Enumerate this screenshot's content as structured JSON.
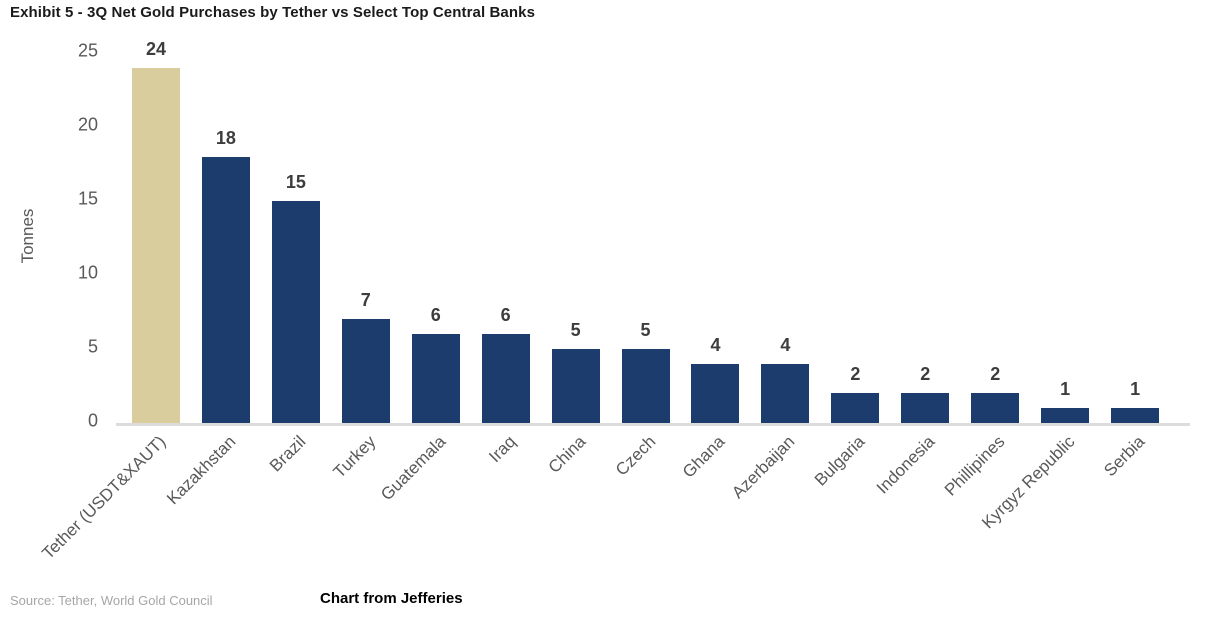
{
  "title": "Exhibit 5 - 3Q Net Gold Purchases by Tether vs Select Top Central Banks",
  "source": "Source: Tether, World Gold Council",
  "caption": "Chart from Jefferies",
  "chart_data": {
    "type": "bar",
    "title": "Exhibit 5 - 3Q Net Gold Purchases by Tether vs Select Top Central Banks",
    "categories": [
      "Tether (USDT&XAUT)",
      "Kazakhstan",
      "Brazil",
      "Turkey",
      "Guatemala",
      "Iraq",
      "China",
      "Czech",
      "Ghana",
      "Azerbaijan",
      "Bulgaria",
      "Indonesia",
      "Phillipines",
      "Kyrgyz Republic",
      "Serbia"
    ],
    "values": [
      24,
      18,
      15,
      7,
      6,
      6,
      5,
      5,
      4,
      4,
      2,
      2,
      2,
      1,
      1
    ],
    "xlabel": "",
    "ylabel": "Tonnes",
    "yticks": [
      0,
      5,
      10,
      15,
      20,
      25
    ],
    "ylim": [
      0,
      25
    ],
    "grid": false,
    "legend": null,
    "highlight_index": 0,
    "colors": {
      "bar_highlight": "#d9cc9d",
      "bar_default": "#1b3c6d",
      "value_label": "#3d3d3d",
      "axis_label": "#595959"
    }
  }
}
